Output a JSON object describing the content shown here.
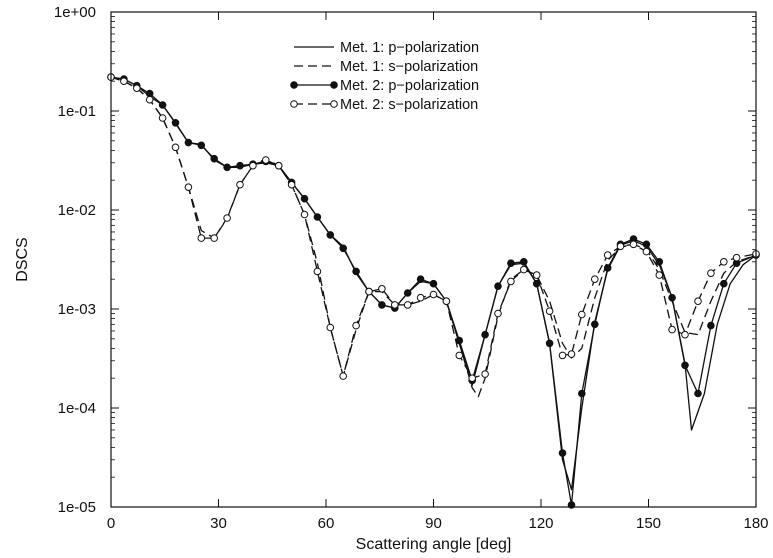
{
  "chart_data": {
    "type": "line",
    "title": "",
    "xlabel": "Scattering angle [deg]",
    "ylabel": "DSCS",
    "xlim": [
      0,
      180
    ],
    "ylim": [
      1e-05,
      1
    ],
    "yscale": "log",
    "grid": false,
    "legend_position": "top-center",
    "xticks": [
      0,
      30,
      60,
      90,
      120,
      150,
      180
    ],
    "xtick_labels": [
      "0",
      "30",
      "60",
      "90",
      "120",
      "150",
      "180"
    ],
    "yticks": [
      1e-05,
      0.0001,
      0.001,
      0.01,
      0.1,
      1
    ],
    "ytick_labels": [
      "1e-05",
      "1e-04",
      "1e-03",
      "1e-02",
      "1e-01",
      "1e+00"
    ],
    "series": [
      {
        "name": "Met. 1: p−polarization",
        "line": "solid",
        "marker": "none",
        "color": "#111111",
        "x": [
          0,
          3.6,
          7.2,
          10.8,
          14.4,
          18,
          21.6,
          25.2,
          28.8,
          32.4,
          36,
          39.6,
          43.2,
          46.8,
          50.4,
          54,
          57.6,
          61.2,
          64.8,
          68.4,
          72,
          75.6,
          79.2,
          82.8,
          86.4,
          90,
          93.6,
          97.2,
          100.8,
          104.4,
          108,
          111.6,
          115.2,
          118.8,
          122.4,
          126,
          128.5,
          131.4,
          135,
          138.6,
          142.2,
          145.8,
          149.4,
          153,
          156.6,
          160.2,
          162,
          165.6,
          169.2,
          172.8,
          176.4,
          180
        ],
        "y": [
          0.22,
          0.21,
          0.18,
          0.14,
          0.115,
          0.075,
          0.048,
          0.046,
          0.032,
          0.027,
          0.027,
          0.029,
          0.03,
          0.028,
          0.019,
          0.013,
          0.0085,
          0.0056,
          0.0043,
          0.0023,
          0.0015,
          0.0011,
          0.00102,
          0.00145,
          0.0019,
          0.0018,
          0.0012,
          0.00045,
          0.00017,
          0.00055,
          0.0017,
          0.0028,
          0.0029,
          0.0018,
          0.00045,
          3e-05,
          1.5e-05,
          0.0001,
          0.00074,
          0.0025,
          0.0044,
          0.0049,
          0.0043,
          0.0028,
          0.0013,
          0.00028,
          6e-05,
          0.00014,
          0.0007,
          0.0018,
          0.0028,
          0.0035
        ]
      },
      {
        "name": "Met. 1: s−polarization",
        "line": "dashed",
        "marker": "none",
        "color": "#111111",
        "x": [
          0,
          3.6,
          7.2,
          10.8,
          14.4,
          18,
          21.6,
          25.2,
          28.8,
          32.4,
          36,
          39.6,
          43.2,
          46.8,
          50.4,
          54,
          57.6,
          61.2,
          64.8,
          68.4,
          72,
          75.6,
          79.2,
          82.8,
          86.4,
          90,
          93.6,
          97.2,
          100.8,
          102.5,
          104.4,
          108,
          111.6,
          115.2,
          118.8,
          122.4,
          126,
          128.5,
          131.4,
          135,
          138.6,
          142.2,
          145.8,
          149.4,
          153,
          156.6,
          160.2,
          163.8,
          167.4,
          171,
          174.6,
          180
        ],
        "y": [
          0.22,
          0.2,
          0.17,
          0.13,
          0.085,
          0.043,
          0.017,
          0.0062,
          0.0052,
          0.0082,
          0.018,
          0.028,
          0.033,
          0.028,
          0.018,
          0.009,
          0.0029,
          0.00065,
          0.00021,
          0.00062,
          0.0015,
          0.0015,
          0.0011,
          0.0011,
          0.0012,
          0.0014,
          0.0012,
          0.00045,
          0.00016,
          0.00013,
          0.0002,
          0.00085,
          0.002,
          0.0025,
          0.0022,
          0.0012,
          0.00045,
          0.00032,
          0.0004,
          0.0013,
          0.0031,
          0.0042,
          0.0045,
          0.004,
          0.0025,
          0.0012,
          0.00058,
          0.00055,
          0.0012,
          0.0023,
          0.003,
          0.0035
        ]
      },
      {
        "name": "Met. 2: p−polarization",
        "line": "solid",
        "marker": "filled-circle",
        "color": "#111111",
        "x": [
          0,
          3.6,
          7.2,
          10.8,
          14.4,
          18,
          21.6,
          25.2,
          28.8,
          32.4,
          36,
          39.6,
          43.2,
          46.8,
          50.4,
          54,
          57.6,
          61.2,
          64.8,
          68.4,
          72,
          75.6,
          79.2,
          82.8,
          86.4,
          90,
          93.6,
          97.2,
          100.8,
          104.4,
          108,
          111.6,
          115.2,
          118.8,
          122.4,
          126,
          128.5,
          131.4,
          135,
          138.6,
          142.2,
          145.8,
          149.4,
          153,
          156.6,
          160.2,
          163.8,
          167.4,
          171,
          174.6,
          180
        ],
        "y": [
          0.22,
          0.21,
          0.18,
          0.15,
          0.115,
          0.076,
          0.048,
          0.045,
          0.033,
          0.027,
          0.028,
          0.029,
          0.031,
          0.028,
          0.019,
          0.013,
          0.0085,
          0.0056,
          0.0041,
          0.0024,
          0.0015,
          0.0011,
          0.00102,
          0.00145,
          0.002,
          0.0018,
          0.0012,
          0.00048,
          0.00019,
          0.00055,
          0.0017,
          0.0029,
          0.003,
          0.0018,
          0.00045,
          3.5e-05,
          1.05e-05,
          0.00014,
          0.0007,
          0.0026,
          0.0045,
          0.0051,
          0.0045,
          0.003,
          0.0013,
          0.00027,
          0.00014,
          0.00068,
          0.0018,
          0.0029,
          0.0035
        ]
      },
      {
        "name": "Met. 2: s−polarization",
        "line": "dashed",
        "marker": "open-circle",
        "color": "#111111",
        "x": [
          0,
          3.6,
          7.2,
          10.8,
          14.4,
          18,
          21.6,
          25.2,
          28.8,
          32.4,
          36,
          39.6,
          43.2,
          46.8,
          50.4,
          54,
          57.6,
          61.2,
          64.8,
          68.4,
          72,
          75.6,
          79.2,
          82.8,
          86.4,
          90,
          93.6,
          97.2,
          100.8,
          104.4,
          108,
          111.6,
          115.2,
          118.8,
          122.4,
          126,
          128.5,
          131.4,
          135,
          138.6,
          142.2,
          145.8,
          149.4,
          153,
          156.6,
          160.2,
          163.8,
          167.4,
          171,
          174.6,
          180
        ],
        "y": [
          0.22,
          0.2,
          0.17,
          0.13,
          0.085,
          0.043,
          0.017,
          0.0052,
          0.0052,
          0.0083,
          0.018,
          0.028,
          0.032,
          0.028,
          0.018,
          0.009,
          0.0024,
          0.00065,
          0.00021,
          0.00068,
          0.0015,
          0.0016,
          0.0011,
          0.0011,
          0.0013,
          0.0014,
          0.0012,
          0.00034,
          0.0002,
          0.00022,
          0.0009,
          0.0019,
          0.0025,
          0.0022,
          0.00095,
          0.00034,
          0.00035,
          0.00088,
          0.002,
          0.0035,
          0.0043,
          0.0045,
          0.0038,
          0.0022,
          0.00062,
          0.00055,
          0.0012,
          0.0023,
          0.003,
          0.0033,
          0.0036
        ]
      }
    ]
  }
}
